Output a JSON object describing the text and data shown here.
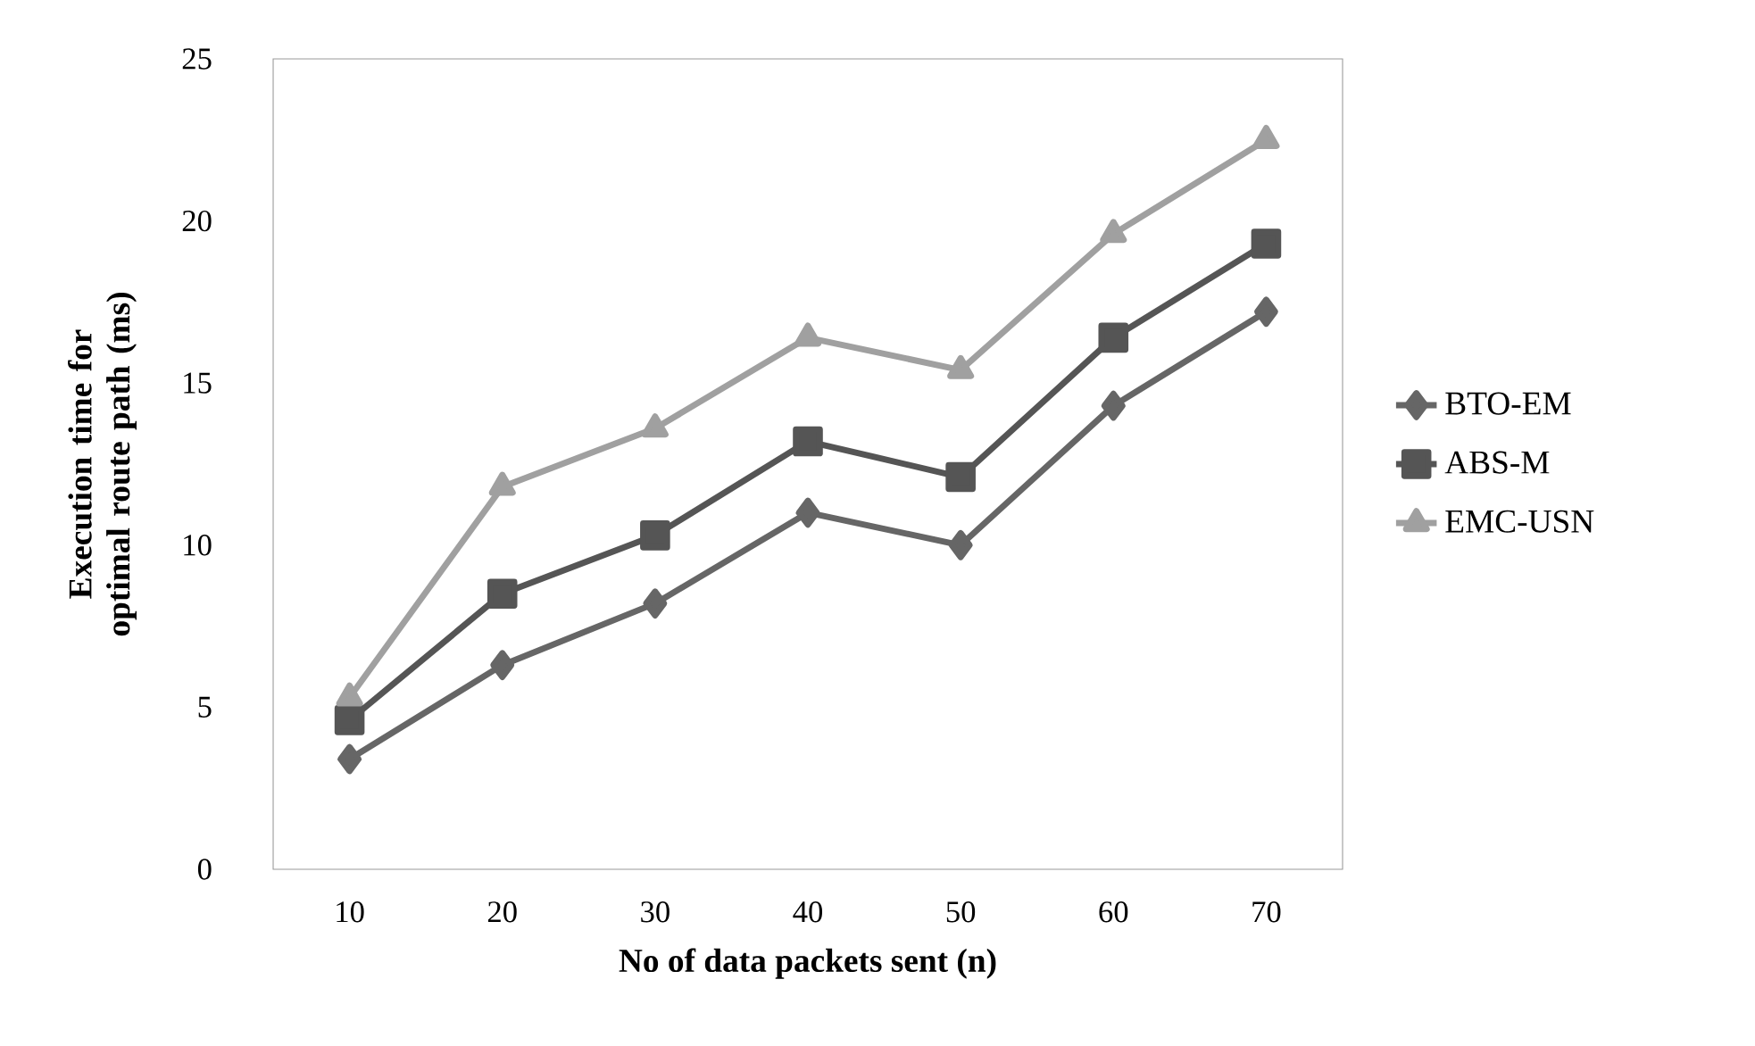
{
  "chart_data": {
    "type": "line",
    "xlabel": "No of data packets sent (n)",
    "ylabel": "Execution time for optimal route path (ms)",
    "categories": [
      "10",
      "20",
      "30",
      "40",
      "50",
      "60",
      "70"
    ],
    "ylim": [
      0,
      25
    ],
    "yticks": [
      0,
      5,
      10,
      15,
      20,
      25
    ],
    "grid": false,
    "legend": "right",
    "series": [
      {
        "name": "BTO-EM",
        "color": "#666666",
        "marker": "diamond",
        "values": [
          3.4,
          6.3,
          8.2,
          11.0,
          10.0,
          14.3,
          17.2
        ]
      },
      {
        "name": "ABS-M",
        "color": "#555555",
        "marker": "square",
        "values": [
          4.6,
          8.5,
          10.3,
          13.2,
          12.1,
          16.4,
          19.3
        ]
      },
      {
        "name": "EMC-USN",
        "color": "#a0a0a0",
        "marker": "triangle",
        "values": [
          5.3,
          11.8,
          13.6,
          16.4,
          15.4,
          19.6,
          22.5
        ]
      }
    ]
  }
}
